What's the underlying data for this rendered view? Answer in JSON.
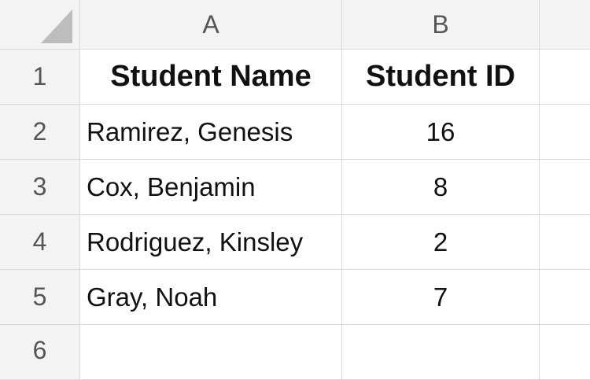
{
  "columns": [
    "A",
    "B"
  ],
  "rows": [
    "1",
    "2",
    "3",
    "4",
    "5",
    "6"
  ],
  "headers": {
    "name": "Student Name",
    "id": "Student ID"
  },
  "students": [
    {
      "name": "Ramirez, Genesis",
      "id": "16"
    },
    {
      "name": "Cox, Benjamin",
      "id": "8"
    },
    {
      "name": "Rodriguez, Kinsley",
      "id": "2"
    },
    {
      "name": "Gray, Noah",
      "id": "7"
    }
  ]
}
